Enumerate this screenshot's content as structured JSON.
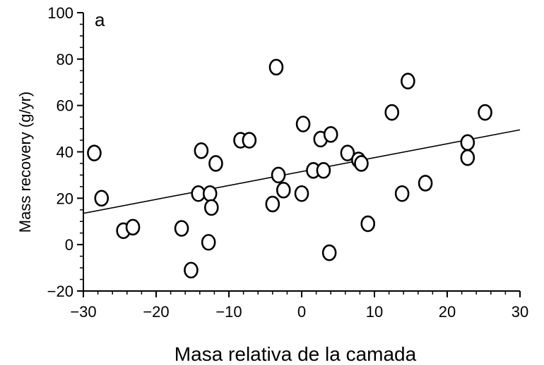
{
  "chart_data": {
    "type": "scatter",
    "panel_label": "a",
    "xlabel": "Masa relativa de la camada",
    "ylabel": "Mass recovery (g/yr)",
    "xlim": [
      -30,
      30
    ],
    "ylim": [
      -20,
      100
    ],
    "xticks": [
      -30,
      -20,
      -10,
      0,
      10,
      20,
      30
    ],
    "yticks": [
      -20,
      0,
      20,
      40,
      60,
      80,
      100
    ],
    "x_tick_labels": [
      "−30",
      "−20",
      "−10",
      "0",
      "10",
      "20",
      "30"
    ],
    "y_tick_labels": [
      "−20",
      "0",
      "20",
      "40",
      "60",
      "80",
      "100"
    ],
    "marker": "open-circle",
    "grid": false,
    "points": [
      {
        "x": -28.5,
        "y": 39.5
      },
      {
        "x": -27.5,
        "y": 20
      },
      {
        "x": -24.5,
        "y": 6
      },
      {
        "x": -23.2,
        "y": 7.5
      },
      {
        "x": -16.5,
        "y": 7
      },
      {
        "x": -15.2,
        "y": -11
      },
      {
        "x": -14.2,
        "y": 22
      },
      {
        "x": -13.8,
        "y": 40.5
      },
      {
        "x": -12.8,
        "y": 1
      },
      {
        "x": -12.6,
        "y": 22
      },
      {
        "x": -12.4,
        "y": 16
      },
      {
        "x": -11.8,
        "y": 35
      },
      {
        "x": -8.4,
        "y": 45
      },
      {
        "x": -7.2,
        "y": 45
      },
      {
        "x": -4,
        "y": 17.5
      },
      {
        "x": -3.5,
        "y": 76.5
      },
      {
        "x": -3.2,
        "y": 30
      },
      {
        "x": -2.5,
        "y": 23.5
      },
      {
        "x": 0,
        "y": 22
      },
      {
        "x": 0.2,
        "y": 52
      },
      {
        "x": 1.6,
        "y": 32
      },
      {
        "x": 2.6,
        "y": 45.5
      },
      {
        "x": 3,
        "y": 32
      },
      {
        "x": 3.8,
        "y": -3.5
      },
      {
        "x": 4,
        "y": 47.5
      },
      {
        "x": 6.3,
        "y": 39.5
      },
      {
        "x": 7.8,
        "y": 36.5
      },
      {
        "x": 8.2,
        "y": 35
      },
      {
        "x": 9.1,
        "y": 9
      },
      {
        "x": 12.4,
        "y": 57
      },
      {
        "x": 13.8,
        "y": 22
      },
      {
        "x": 14.6,
        "y": 70.5
      },
      {
        "x": 17,
        "y": 26.5
      },
      {
        "x": 22.8,
        "y": 44
      },
      {
        "x": 22.8,
        "y": 37.5
      },
      {
        "x": 25.2,
        "y": 57
      }
    ],
    "trend_line": {
      "x": [
        -30,
        30
      ],
      "y": [
        13.5,
        49.5
      ]
    }
  }
}
